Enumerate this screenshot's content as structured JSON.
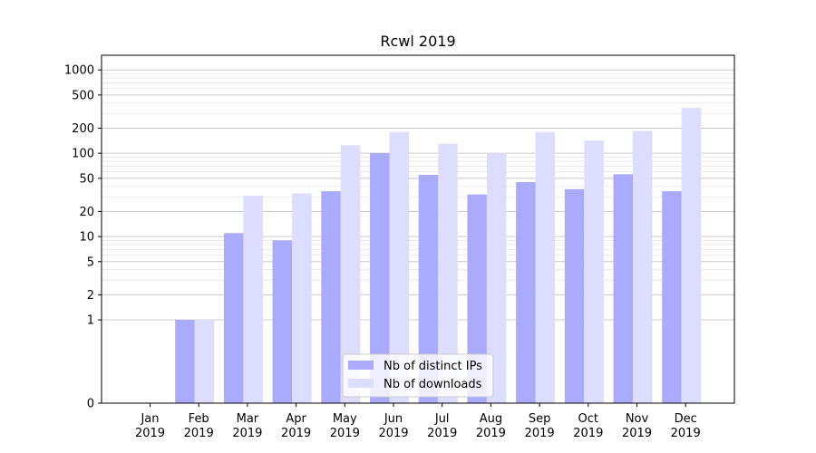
{
  "chart_data": {
    "type": "bar",
    "title": "Rcwl 2019",
    "xlabel": "",
    "ylabel": "",
    "y_scale": "symlog",
    "ylim": [
      0,
      1500
    ],
    "y_ticks": [
      0,
      1,
      2,
      5,
      10,
      20,
      50,
      100,
      200,
      500,
      1000
    ],
    "y_tick_labels": [
      "0",
      "1",
      "2",
      "5",
      "10",
      "20",
      "50",
      "100",
      "200",
      "500",
      "1000"
    ],
    "categories": [
      [
        "Jan",
        "2019"
      ],
      [
        "Feb",
        "2019"
      ],
      [
        "Mar",
        "2019"
      ],
      [
        "Apr",
        "2019"
      ],
      [
        "May",
        "2019"
      ],
      [
        "Jun",
        "2019"
      ],
      [
        "Jul",
        "2019"
      ],
      [
        "Aug",
        "2019"
      ],
      [
        "Sep",
        "2019"
      ],
      [
        "Oct",
        "2019"
      ],
      [
        "Nov",
        "2019"
      ],
      [
        "Dec",
        "2019"
      ]
    ],
    "series": [
      {
        "name": "Nb of distinct IPs",
        "color": "#aaaaff",
        "values": [
          0,
          1,
          11,
          9,
          35,
          100,
          55,
          32,
          45,
          37,
          56,
          35
        ]
      },
      {
        "name": "Nb of downloads",
        "color": "#ddddff",
        "values": [
          0,
          1,
          31,
          33,
          125,
          180,
          130,
          100,
          180,
          142,
          185,
          350
        ]
      }
    ],
    "grid": true,
    "legend_position": "bottom-center"
  }
}
